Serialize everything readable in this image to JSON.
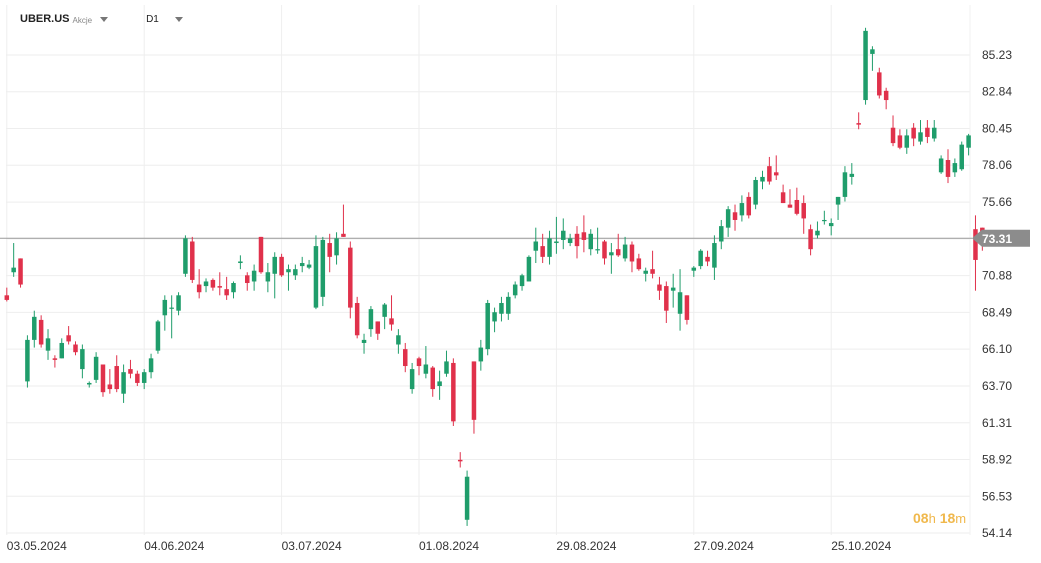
{
  "header": {
    "symbol": "UBER.US",
    "instrument_type": "Akcje",
    "timeframe": "D1"
  },
  "countdown": {
    "hours": "08",
    "hours_unit": "h",
    "minutes": "18",
    "minutes_unit": "m"
  },
  "colors": {
    "up": "#1f9d6b",
    "down": "#e0314b",
    "grid": "#eeeeee",
    "price_line": "#9a9a9a",
    "badge": "#8c8c8c",
    "countdown": "#f0b84c"
  },
  "chart_data": {
    "type": "candlestick",
    "symbol": "UBER.US",
    "timeframe": "D1",
    "current_price": 73.31,
    "current_price_label": "73.31",
    "y_range": [
      54.0,
      87.0
    ],
    "y_ticks": [
      85.23,
      82.84,
      80.45,
      78.06,
      75.66,
      73.27,
      70.88,
      68.49,
      66.1,
      63.7,
      61.31,
      58.92,
      56.53,
      54.14
    ],
    "y_tick_labels": [
      "85.23",
      "82.84",
      "80.45",
      "78.06",
      "75.66",
      "",
      "70.88",
      "68.49",
      "66.10",
      "63.70",
      "61.31",
      "58.92",
      "56.53",
      "54.14"
    ],
    "x_labels": [
      {
        "index": 0,
        "text": "03.05.2024"
      },
      {
        "index": 20,
        "text": "04.06.2024"
      },
      {
        "index": 40,
        "text": "03.07.2024"
      },
      {
        "index": 60,
        "text": "01.08.2024"
      },
      {
        "index": 80,
        "text": "29.08.2024"
      },
      {
        "index": 100,
        "text": "27.09.2024"
      },
      {
        "index": 120,
        "text": "25.10.2024"
      }
    ],
    "candles": [
      [
        69.6,
        70.1,
        69.2,
        69.3
      ],
      [
        71.1,
        73.0,
        70.8,
        71.4
      ],
      [
        72.0,
        72.0,
        70.1,
        70.3
      ],
      [
        64.0,
        67.0,
        63.6,
        66.7
      ],
      [
        66.7,
        68.6,
        66.2,
        68.2
      ],
      [
        68.0,
        68.3,
        66.2,
        66.4
      ],
      [
        66.0,
        67.4,
        65.4,
        66.8
      ],
      [
        65.5,
        65.7,
        64.9,
        65.4
      ],
      [
        65.5,
        66.8,
        65.5,
        66.5
      ],
      [
        67.0,
        67.6,
        66.4,
        66.6
      ],
      [
        66.4,
        66.6,
        65.7,
        65.9
      ],
      [
        64.8,
        66.4,
        64.2,
        66.1
      ],
      [
        63.8,
        64.0,
        63.6,
        63.9
      ],
      [
        64.1,
        65.9,
        63.9,
        65.6
      ],
      [
        65.1,
        65.1,
        63.0,
        63.3
      ],
      [
        63.8,
        64.8,
        63.2,
        63.5
      ],
      [
        65.0,
        65.7,
        63.3,
        63.5
      ],
      [
        63.2,
        65.1,
        62.6,
        64.6
      ],
      [
        64.8,
        65.4,
        64.2,
        64.5
      ],
      [
        64.5,
        64.7,
        63.7,
        63.9
      ],
      [
        63.9,
        64.8,
        63.5,
        64.6
      ],
      [
        64.6,
        65.8,
        64.2,
        65.5
      ],
      [
        66.0,
        68.0,
        65.8,
        67.9
      ],
      [
        68.3,
        69.6,
        67.3,
        69.3
      ],
      [
        68.8,
        69.6,
        66.8,
        68.8
      ],
      [
        68.6,
        69.8,
        68.3,
        69.6
      ],
      [
        71.0,
        73.5,
        70.8,
        73.3
      ],
      [
        73.1,
        73.4,
        70.4,
        70.6
      ],
      [
        70.3,
        71.3,
        69.4,
        69.8
      ],
      [
        70.2,
        70.7,
        69.8,
        70.5
      ],
      [
        70.6,
        70.7,
        69.9,
        70.1
      ],
      [
        70.2,
        71.1,
        69.6,
        70.1
      ],
      [
        70.0,
        70.8,
        69.3,
        69.6
      ],
      [
        69.8,
        70.5,
        69.4,
        70.4
      ],
      [
        71.7,
        72.2,
        71.3,
        71.8
      ],
      [
        70.9,
        71.1,
        69.9,
        70.4
      ],
      [
        70.5,
        71.6,
        69.9,
        71.2
      ],
      [
        73.4,
        73.4,
        71.0,
        71.1
      ],
      [
        70.5,
        71.7,
        69.8,
        71.1
      ],
      [
        71.0,
        72.4,
        69.4,
        72.1
      ],
      [
        72.1,
        72.3,
        70.8,
        70.9
      ],
      [
        71.1,
        71.6,
        69.9,
        71.3
      ],
      [
        70.9,
        71.6,
        70.6,
        71.3
      ],
      [
        71.5,
        72.1,
        71.1,
        71.7
      ],
      [
        71.4,
        71.9,
        71.3,
        71.6
      ],
      [
        68.8,
        73.5,
        68.7,
        72.8
      ],
      [
        69.5,
        73.4,
        68.9,
        73.2
      ],
      [
        73.0,
        73.6,
        71.1,
        72.1
      ],
      [
        72.2,
        73.7,
        71.6,
        73.3
      ],
      [
        73.6,
        75.5,
        73.4,
        73.4
      ],
      [
        72.7,
        73.1,
        68.1,
        68.8
      ],
      [
        69.1,
        69.5,
        66.8,
        67.0
      ],
      [
        66.5,
        67.1,
        65.8,
        66.7
      ],
      [
        67.4,
        68.9,
        66.9,
        68.7
      ],
      [
        67.9,
        67.9,
        66.7,
        67.1
      ],
      [
        68.2,
        69.1,
        67.4,
        69.0
      ],
      [
        68.1,
        69.6,
        67.3,
        67.7
      ],
      [
        66.4,
        67.4,
        65.8,
        67.0
      ],
      [
        66.1,
        66.5,
        64.6,
        65.0
      ],
      [
        63.5,
        65.2,
        63.2,
        64.8
      ],
      [
        65.5,
        65.6,
        64.4,
        65.0
      ],
      [
        64.5,
        66.3,
        64.2,
        65.1
      ],
      [
        64.9,
        65.0,
        63.0,
        63.5
      ],
      [
        63.7,
        64.7,
        62.8,
        64.0
      ],
      [
        64.5,
        66.0,
        64.3,
        65.3
      ],
      [
        65.2,
        65.5,
        61.1,
        61.4
      ],
      [
        58.9,
        59.4,
        58.4,
        58.8
      ],
      [
        55.0,
        58.2,
        54.6,
        57.8
      ],
      [
        65.3,
        65.3,
        60.6,
        61.5
      ],
      [
        65.3,
        66.7,
        64.7,
        66.2
      ],
      [
        66.1,
        69.3,
        65.7,
        69.1
      ],
      [
        67.9,
        68.8,
        67.2,
        68.5
      ],
      [
        68.4,
        69.5,
        67.9,
        69.1
      ],
      [
        68.4,
        69.8,
        68.0,
        69.5
      ],
      [
        69.6,
        70.5,
        69.4,
        70.3
      ],
      [
        70.2,
        71.0,
        69.9,
        70.9
      ],
      [
        70.5,
        72.2,
        70.5,
        72.1
      ],
      [
        72.5,
        74.0,
        71.7,
        73.1
      ],
      [
        72.8,
        73.6,
        71.7,
        72.1
      ],
      [
        72.1,
        73.8,
        71.6,
        73.3
      ],
      [
        73.0,
        74.7,
        72.3,
        73.1
      ],
      [
        73.2,
        74.6,
        72.6,
        73.8
      ],
      [
        73.0,
        73.6,
        72.8,
        73.3
      ],
      [
        73.6,
        74.1,
        72.0,
        72.8
      ],
      [
        73.7,
        74.8,
        72.4,
        73.2
      ],
      [
        72.6,
        73.9,
        72.2,
        73.6
      ],
      [
        72.6,
        74.0,
        72.3,
        72.6
      ],
      [
        73.1,
        73.2,
        71.6,
        72.0
      ],
      [
        72.2,
        73.0,
        71.0,
        72.4
      ],
      [
        72.6,
        73.6,
        72.1,
        72.2
      ],
      [
        72.0,
        73.4,
        71.8,
        72.9
      ],
      [
        72.9,
        73.1,
        71.1,
        71.8
      ],
      [
        72.0,
        72.3,
        71.2,
        71.3
      ],
      [
        71.0,
        71.4,
        70.5,
        71.2
      ],
      [
        71.3,
        72.5,
        70.7,
        71.0
      ],
      [
        70.3,
        70.8,
        69.3,
        69.9
      ],
      [
        70.2,
        70.5,
        67.8,
        68.6
      ],
      [
        69.9,
        71.0,
        68.8,
        70.1
      ],
      [
        68.4,
        71.3,
        67.3,
        69.8
      ],
      [
        69.6,
        69.6,
        67.7,
        68.0
      ],
      [
        71.2,
        71.5,
        70.8,
        71.4
      ],
      [
        71.5,
        72.6,
        71.3,
        72.5
      ],
      [
        72.1,
        72.5,
        71.5,
        71.8
      ],
      [
        71.4,
        73.5,
        70.6,
        73.0
      ],
      [
        73.1,
        74.5,
        72.6,
        74.1
      ],
      [
        74.0,
        75.4,
        73.4,
        75.2
      ],
      [
        75.0,
        75.5,
        73.8,
        74.5
      ],
      [
        74.8,
        76.1,
        74.4,
        75.6
      ],
      [
        76.0,
        76.3,
        74.6,
        74.8
      ],
      [
        75.5,
        77.3,
        75.2,
        77.1
      ],
      [
        77.0,
        77.7,
        76.5,
        77.3
      ],
      [
        78.0,
        78.6,
        76.8,
        77.0
      ],
      [
        77.6,
        78.7,
        77.1,
        77.4
      ],
      [
        76.3,
        76.8,
        75.6,
        75.6
      ],
      [
        75.5,
        76.5,
        75.3,
        75.3
      ],
      [
        75.8,
        76.6,
        74.8,
        74.9
      ],
      [
        75.6,
        76.1,
        73.6,
        74.6
      ],
      [
        73.9,
        74.2,
        72.2,
        72.6
      ],
      [
        73.5,
        74.4,
        73.3,
        73.8
      ],
      [
        74.5,
        75.1,
        74.2,
        74.5
      ],
      [
        74.1,
        74.6,
        73.5,
        74.3
      ],
      [
        75.5,
        76.0,
        74.5,
        76.0
      ],
      [
        76.0,
        78.0,
        75.7,
        77.6
      ],
      [
        77.3,
        78.2,
        76.8,
        77.5
      ],
      [
        80.8,
        81.5,
        80.4,
        80.7
      ],
      [
        82.3,
        87.0,
        82.0,
        86.8
      ],
      [
        85.3,
        85.8,
        84.2,
        85.6
      ],
      [
        84.1,
        84.4,
        82.4,
        82.6
      ],
      [
        82.9,
        83.1,
        81.7,
        82.3
      ],
      [
        80.5,
        81.3,
        79.3,
        79.5
      ],
      [
        80.0,
        80.4,
        79.1,
        79.2
      ],
      [
        79.2,
        80.4,
        78.8,
        80.0
      ],
      [
        80.5,
        80.8,
        79.3,
        79.8
      ],
      [
        79.6,
        81.0,
        79.4,
        80.2
      ],
      [
        80.5,
        81.0,
        79.5,
        79.9
      ],
      [
        79.8,
        81.0,
        79.6,
        80.5
      ],
      [
        77.6,
        78.7,
        77.5,
        78.5
      ],
      [
        78.4,
        79.1,
        76.9,
        77.3
      ],
      [
        77.6,
        78.5,
        77.3,
        78.2
      ],
      [
        77.8,
        79.6,
        77.7,
        79.4
      ],
      [
        79.2,
        80.1,
        78.7,
        80.0
      ],
      [
        73.9,
        74.8,
        69.9,
        71.9
      ],
      [
        74.0,
        74.0,
        72.5,
        73.1
      ]
    ]
  }
}
